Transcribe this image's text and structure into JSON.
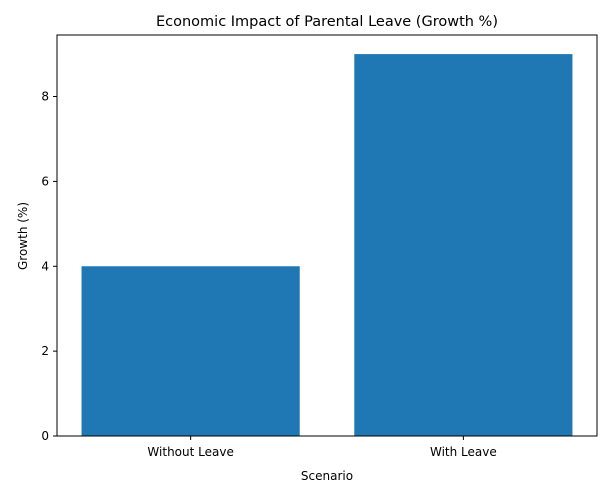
{
  "chart_data": {
    "type": "bar",
    "title": "Economic Impact of Parental Leave (Growth %)",
    "xlabel": "Scenario",
    "ylabel": "Growth (%)",
    "categories": [
      "Without Leave",
      "With Leave"
    ],
    "values": [
      4,
      9
    ],
    "ylim": [
      0,
      9.45
    ],
    "yticks": [
      0,
      2,
      4,
      6,
      8
    ],
    "grid": false,
    "bar_color": "#1f77b4"
  }
}
